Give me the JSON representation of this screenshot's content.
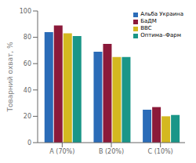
{
  "chart_data": {
    "type": "bar",
    "categories": [
      "A (70%)",
      "B (20%)",
      "C (10%)"
    ],
    "series": [
      {
        "name": "Альба Украина",
        "color": "#2B6CB8",
        "values": [
          84,
          69,
          25
        ]
      },
      {
        "name": "БаДМ",
        "color": "#8B1A3A",
        "values": [
          89,
          75,
          27
        ]
      },
      {
        "name": "ВВС",
        "color": "#D4B820",
        "values": [
          83,
          65,
          20
        ]
      },
      {
        "name": "Оптима–Фарм",
        "color": "#1A9688",
        "values": [
          81,
          65,
          21
        ]
      }
    ],
    "ylabel": "Товарний охват, %",
    "ylim": [
      0,
      100
    ],
    "yticks": [
      0,
      20,
      40,
      60,
      80,
      100
    ],
    "grid": false,
    "legend": "upper right"
  }
}
